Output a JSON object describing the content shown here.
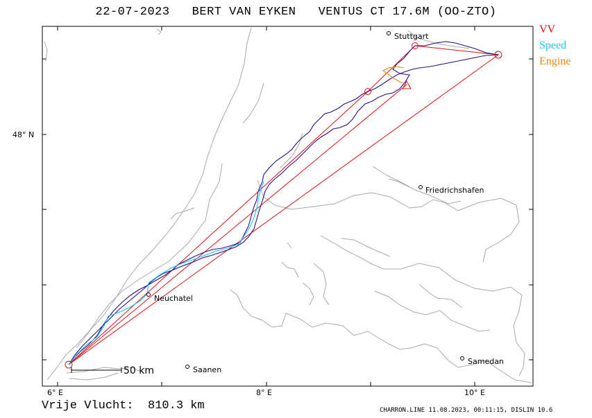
{
  "title": "22-07-2023   BERT VAN EYKEN   VENTUS CT 17.6M (OO-ZTO)",
  "legend": [
    {
      "label": "VV",
      "color": "#e01010"
    },
    {
      "label": "Speed",
      "color": "#19c6f0"
    },
    {
      "label": "Engine",
      "color": "#f08a10"
    }
  ],
  "axes": {
    "lat_label": "48° N",
    "lon_labels": [
      "6° E",
      "8° E",
      "10° E"
    ]
  },
  "places": [
    {
      "name": "Stuttgart"
    },
    {
      "name": "Friedrichshafen"
    },
    {
      "name": "Neuchatel"
    },
    {
      "name": "Saanen"
    },
    {
      "name": "Samedan"
    }
  ],
  "scale_label": "50 km",
  "distance_text": "Vrije Vlucht:  810.3 km",
  "footer_info": "CHARRON.LINE 11.08.2023, 00:11:15, DISLIN 10.6",
  "colors": {
    "track": "#2a0a8c",
    "map": "#a8a8a8",
    "frame": "#000000"
  }
}
